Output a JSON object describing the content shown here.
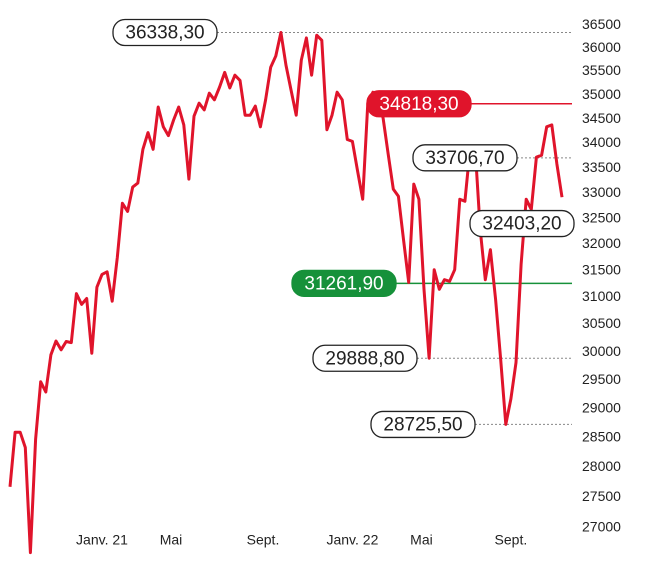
{
  "chart_data": {
    "type": "line",
    "log_y": true,
    "color": "#e0142b",
    "xlim": [
      0,
      108
    ],
    "xticks": [
      {
        "value": 18,
        "label": "Janv. 21"
      },
      {
        "value": 31.5,
        "label": "Mai"
      },
      {
        "value": 49.5,
        "label": "Sept."
      },
      {
        "value": 67,
        "label": "Janv. 22"
      },
      {
        "value": 80.5,
        "label": "Mai"
      },
      {
        "value": 98,
        "label": "Sept."
      }
    ],
    "ylim": [
      26450,
      36700
    ],
    "yticks": [
      27000,
      27500,
      28000,
      28500,
      29000,
      29500,
      30000,
      30500,
      31000,
      31500,
      32000,
      32500,
      33000,
      33500,
      34000,
      34500,
      35000,
      35500,
      36000,
      36500
    ],
    "values": [
      27670,
      28590,
      28590,
      28330,
      26600,
      28470,
      29470,
      29290,
      29950,
      30200,
      30040,
      30190,
      30170,
      31070,
      30870,
      30980,
      29980,
      31190,
      31430,
      31480,
      30930,
      31750,
      32800,
      32640,
      33120,
      33200,
      33880,
      34220,
      33880,
      34750,
      34340,
      34160,
      34480,
      34750,
      34380,
      33280,
      34560,
      34830,
      34690,
      35040,
      34900,
      35170,
      35480,
      35150,
      35420,
      35310,
      34580,
      34580,
      34770,
      34340,
      34900,
      35590,
      35830,
      36338.3,
      35630,
      35100,
      34580,
      35740,
      36220,
      35420,
      36280,
      36170,
      34280,
      34580,
      35060,
      34900,
      34080,
      34040,
      33440,
      32880,
      34830,
      35060,
      34940,
      34520,
      33780,
      33080,
      32940,
      32080,
      31280,
      33180,
      32880,
      31150,
      29888.8,
      31520,
      31150,
      31330,
      31300,
      31520,
      32880,
      32840,
      33880,
      33920,
      32290,
      31330,
      31900,
      30960,
      29860,
      28725.5,
      29170,
      29810,
      31620,
      32880,
      32680,
      33720,
      33760,
      34340,
      34380,
      33580,
      32920
    ],
    "annotations": [
      {
        "value": 36338.3,
        "label": "36338,30",
        "line": "dashed"
      },
      {
        "value": 34818.3,
        "label": "34818,30",
        "line": "solid",
        "color": "#e0142b"
      },
      {
        "value": 33706.7,
        "label": "33706,70",
        "line": "dashed"
      },
      {
        "value": 32403.2,
        "label": "32403,20",
        "line": "none"
      },
      {
        "value": 31261.9,
        "label": "31261,90",
        "line": "solid",
        "color": "#16913a"
      },
      {
        "value": 29888.8,
        "label": "29888,80",
        "line": "dashed"
      },
      {
        "value": 28725.5,
        "label": "28725,50",
        "line": "dashed"
      }
    ]
  }
}
